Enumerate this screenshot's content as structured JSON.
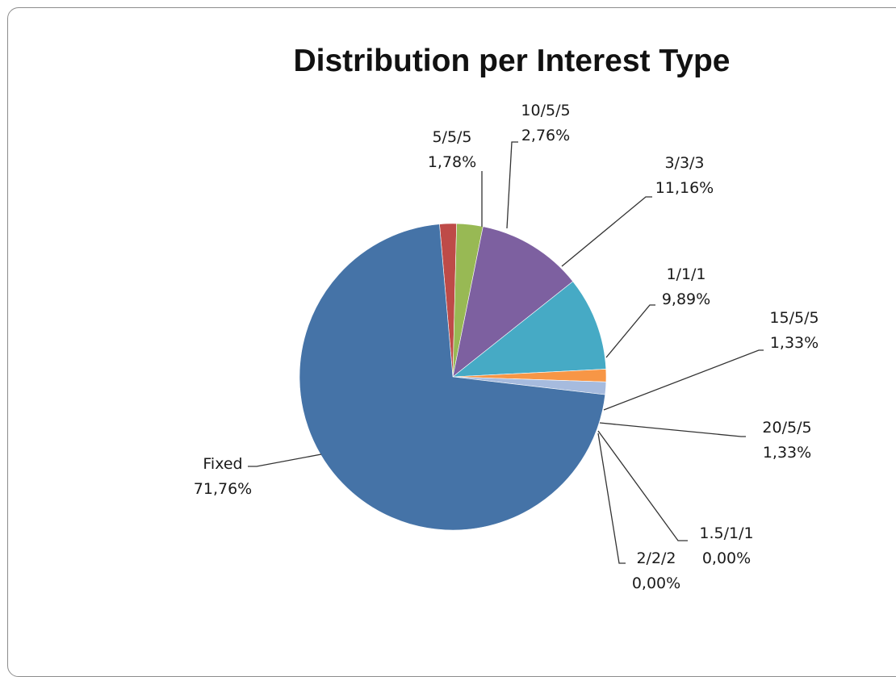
{
  "chart_data": {
    "type": "pie",
    "title": "Distribution per Interest Type",
    "legend": "none",
    "slices": [
      {
        "name": "5/5/5",
        "value": 1.78,
        "label": "1,78%",
        "color": "#be4b48"
      },
      {
        "name": "10/5/5",
        "value": 2.76,
        "label": "2,76%",
        "color": "#98b954"
      },
      {
        "name": "3/3/3",
        "value": 11.16,
        "label": "11,16%",
        "color": "#7d60a0"
      },
      {
        "name": "1/1/1",
        "value": 9.89,
        "label": "9,89%",
        "color": "#46aac5"
      },
      {
        "name": "15/5/5",
        "value": 1.33,
        "label": "1,33%",
        "color": "#f79646"
      },
      {
        "name": "20/5/5",
        "value": 1.33,
        "label": "1,33%",
        "color": "#a6bbde"
      },
      {
        "name": "1.5/1/1",
        "value": 0.0,
        "label": "0,00%",
        "color": "#c0504d"
      },
      {
        "name": "2/2/2",
        "value": 0.0,
        "label": "0,00%",
        "color": "#9bbb59"
      },
      {
        "name": "Fixed",
        "value": 71.76,
        "label": "71,76%",
        "color": "#4573a7"
      }
    ]
  }
}
